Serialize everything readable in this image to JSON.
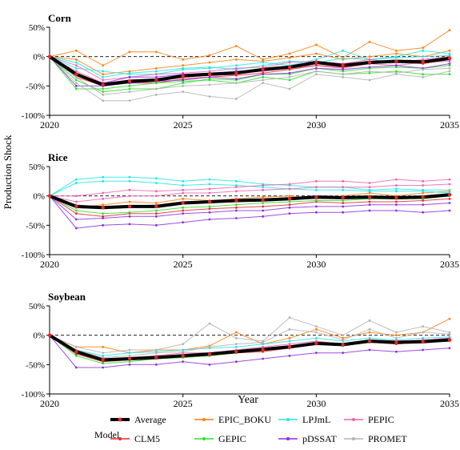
{
  "figure": {
    "xlabel": "Year",
    "ylabel": "Production Shock",
    "legend_title": "Model",
    "legend_placement": "bottom"
  },
  "chart_data": [
    {
      "type": "line",
      "title": "Corn",
      "xlabel": "",
      "ylabel": "Production Shock",
      "xlim": [
        2020,
        2035
      ],
      "ylim": [
        -100,
        50
      ],
      "xticks": [
        "2020",
        "2025",
        "2030",
        "2035"
      ],
      "yticks": [
        "50%",
        "0%",
        "-50%",
        "-100%"
      ],
      "x": [
        2020,
        2021,
        2022,
        2023,
        2024,
        2025,
        2026,
        2027,
        2028,
        2029,
        2030,
        2031,
        2032,
        2033,
        2034,
        2035
      ],
      "reference_line": 0,
      "series": [
        {
          "name": "Average",
          "values": [
            0,
            -30,
            -48,
            -42,
            -40,
            -33,
            -30,
            -28,
            -22,
            -18,
            -10,
            -15,
            -10,
            -8,
            -9,
            -3
          ]
        },
        {
          "name": "EPIC_BOKU",
          "values": [
            0,
            10,
            -15,
            8,
            8,
            -5,
            2,
            18,
            -5,
            5,
            20,
            -2,
            25,
            10,
            15,
            45
          ]
        },
        {
          "name": "EPIC_BOKU",
          "values": [
            0,
            -5,
            -30,
            -25,
            -20,
            -15,
            -10,
            -5,
            -8,
            -2,
            5,
            -5,
            0,
            5,
            0,
            10
          ]
        },
        {
          "name": "LPJmL",
          "values": [
            0,
            -20,
            -25,
            -30,
            -30,
            -22,
            -20,
            -15,
            -10,
            -15,
            -5,
            10,
            -5,
            0,
            10,
            5
          ]
        },
        {
          "name": "LPJmL",
          "values": [
            0,
            -10,
            -35,
            -28,
            -25,
            -20,
            -18,
            -22,
            -15,
            -8,
            -10,
            -3,
            -5,
            -2,
            0,
            2
          ]
        },
        {
          "name": "PEPIC",
          "values": [
            0,
            -15,
            -40,
            -35,
            -30,
            -28,
            -25,
            -20,
            -18,
            -10,
            -8,
            -12,
            -5,
            -10,
            -5,
            0
          ]
        },
        {
          "name": "PEPIC",
          "values": [
            0,
            -25,
            -45,
            -40,
            -38,
            -32,
            -30,
            -28,
            -25,
            -20,
            -15,
            -20,
            -12,
            -15,
            -10,
            -8
          ]
        },
        {
          "name": "CLM5",
          "values": [
            0,
            -35,
            -50,
            -45,
            -45,
            -38,
            -35,
            -32,
            -28,
            -22,
            -15,
            -18,
            -12,
            -10,
            -12,
            -5
          ]
        },
        {
          "name": "GEPIC",
          "values": [
            0,
            -55,
            -55,
            -50,
            -45,
            -42,
            -40,
            -45,
            -35,
            -40,
            -25,
            -30,
            -28,
            -25,
            -30,
            -30
          ]
        },
        {
          "name": "GEPIC",
          "values": [
            0,
            -40,
            -60,
            -55,
            -55,
            -45,
            -38,
            -40,
            -30,
            -30,
            -20,
            -25,
            -20,
            -18,
            -20,
            -15
          ]
        },
        {
          "name": "pDSSAT",
          "values": [
            0,
            -50,
            -50,
            -45,
            -42,
            -40,
            -35,
            -38,
            -30,
            -28,
            -20,
            -22,
            -18,
            -15,
            -20,
            -12
          ]
        },
        {
          "name": "pDSSAT",
          "values": [
            0,
            -30,
            -45,
            -35,
            -35,
            -30,
            -28,
            -25,
            -22,
            -18,
            -12,
            -15,
            -10,
            -8,
            -10,
            -5
          ]
        },
        {
          "name": "PROMET",
          "values": [
            0,
            -45,
            -75,
            -75,
            -65,
            -60,
            -68,
            -72,
            -45,
            -55,
            -30,
            -35,
            -40,
            -30,
            -35,
            -25
          ]
        },
        {
          "name": "PROMET",
          "values": [
            0,
            -35,
            -65,
            -60,
            -55,
            -50,
            -48,
            -45,
            -40,
            -35,
            -25,
            -30,
            -25,
            -28,
            -22,
            -20
          ]
        }
      ]
    },
    {
      "type": "line",
      "title": "Rice",
      "xlabel": "",
      "ylabel": "Production Shock",
      "xlim": [
        2020,
        2035
      ],
      "ylim": [
        -100,
        50
      ],
      "xticks": [
        "2020",
        "2025",
        "2030",
        "2035"
      ],
      "yticks": [
        "50%",
        "0%",
        "-50%",
        "-100%"
      ],
      "x": [
        2020,
        2021,
        2022,
        2023,
        2024,
        2025,
        2026,
        2027,
        2028,
        2029,
        2030,
        2031,
        2032,
        2033,
        2034,
        2035
      ],
      "reference_line": 0,
      "series": [
        {
          "name": "Average",
          "values": [
            0,
            -18,
            -20,
            -18,
            -18,
            -12,
            -10,
            -8,
            -7,
            -5,
            -2,
            -3,
            -2,
            -3,
            -2,
            2
          ]
        },
        {
          "name": "EPIC_BOKU",
          "values": [
            0,
            -20,
            -15,
            -10,
            -12,
            -5,
            -8,
            -5,
            -2,
            0,
            -5,
            0,
            5,
            0,
            5,
            8
          ]
        },
        {
          "name": "LPJmL",
          "values": [
            0,
            28,
            32,
            32,
            30,
            25,
            28,
            25,
            20,
            18,
            15,
            15,
            10,
            12,
            10,
            10
          ]
        },
        {
          "name": "LPJmL",
          "values": [
            0,
            22,
            25,
            25,
            22,
            18,
            20,
            18,
            15,
            12,
            10,
            10,
            8,
            8,
            8,
            5
          ]
        },
        {
          "name": "PEPIC",
          "values": [
            0,
            0,
            5,
            10,
            8,
            10,
            12,
            15,
            18,
            20,
            25,
            25,
            22,
            28,
            25,
            28
          ]
        },
        {
          "name": "PEPIC",
          "values": [
            0,
            -10,
            -5,
            0,
            0,
            5,
            5,
            8,
            10,
            12,
            15,
            15,
            15,
            18,
            18,
            20
          ]
        },
        {
          "name": "CLM5",
          "values": [
            0,
            -30,
            -35,
            -30,
            -30,
            -25,
            -22,
            -20,
            -18,
            -15,
            -10,
            -12,
            -10,
            -10,
            -8,
            -5
          ]
        },
        {
          "name": "GEPIC",
          "values": [
            0,
            -25,
            -30,
            -28,
            -25,
            -20,
            -18,
            -15,
            -12,
            -10,
            -8,
            -8,
            -5,
            -5,
            -5,
            0
          ]
        },
        {
          "name": "pDSSAT",
          "values": [
            0,
            -55,
            -50,
            -48,
            -50,
            -45,
            -40,
            -38,
            -35,
            -30,
            -28,
            -28,
            -25,
            -25,
            -28,
            -25
          ]
        },
        {
          "name": "pDSSAT",
          "values": [
            0,
            -40,
            -38,
            -35,
            -35,
            -30,
            -28,
            -25,
            -25,
            -20,
            -18,
            -18,
            -15,
            -15,
            -15,
            -12
          ]
        },
        {
          "name": "PROMET",
          "values": [
            0,
            -15,
            -20,
            -18,
            -15,
            -10,
            -12,
            -10,
            -8,
            -5,
            -5,
            -5,
            0,
            -2,
            0,
            0
          ]
        }
      ]
    },
    {
      "type": "line",
      "title": "Soybean",
      "xlabel": "Year",
      "ylabel": "Production Shock",
      "xlim": [
        2020,
        2035
      ],
      "ylim": [
        -100,
        50
      ],
      "xticks": [
        "2020",
        "2025",
        "2030",
        "2035"
      ],
      "yticks": [
        "50%",
        "0%",
        "-50%",
        "-100%"
      ],
      "x": [
        2020,
        2021,
        2022,
        2023,
        2024,
        2025,
        2026,
        2027,
        2028,
        2029,
        2030,
        2031,
        2032,
        2033,
        2034,
        2035
      ],
      "reference_line": 0,
      "series": [
        {
          "name": "Average",
          "values": [
            0,
            -28,
            -42,
            -40,
            -38,
            -35,
            -32,
            -28,
            -24,
            -20,
            -14,
            -16,
            -10,
            -12,
            -11,
            -8
          ]
        },
        {
          "name": "EPIC_BOKU",
          "values": [
            0,
            -20,
            -20,
            -30,
            -25,
            -25,
            -18,
            5,
            -15,
            -5,
            10,
            -5,
            5,
            0,
            5,
            28
          ]
        },
        {
          "name": "LPJmL",
          "values": [
            0,
            -25,
            -35,
            -30,
            -28,
            -25,
            -22,
            -20,
            -15,
            -10,
            -5,
            -10,
            -5,
            -8,
            -5,
            -3
          ]
        },
        {
          "name": "PEPIC",
          "values": [
            0,
            -30,
            -40,
            -38,
            -35,
            -30,
            -30,
            -25,
            -20,
            -15,
            -10,
            -15,
            -8,
            -10,
            -8,
            -5
          ]
        },
        {
          "name": "CLM5",
          "values": [
            0,
            -32,
            -45,
            -42,
            -40,
            -38,
            -35,
            -30,
            -28,
            -22,
            -15,
            -18,
            -12,
            -15,
            -12,
            -10
          ]
        },
        {
          "name": "GEPIC",
          "values": [
            0,
            -35,
            -48,
            -45,
            -40,
            -38,
            -35,
            -30,
            -25,
            -20,
            -15,
            -18,
            -12,
            -12,
            -12,
            -10
          ]
        },
        {
          "name": "pDSSAT",
          "values": [
            0,
            -55,
            -55,
            -50,
            -50,
            -45,
            -50,
            -45,
            -40,
            -35,
            -30,
            -30,
            -25,
            -28,
            -25,
            -22
          ]
        },
        {
          "name": "PROMET",
          "values": [
            0,
            -20,
            -30,
            -25,
            -25,
            -15,
            20,
            -5,
            -10,
            30,
            15,
            0,
            25,
            5,
            15,
            5
          ]
        },
        {
          "name": "PROMET",
          "values": [
            0,
            -25,
            -38,
            -35,
            -30,
            -28,
            -20,
            -15,
            -12,
            10,
            5,
            -8,
            10,
            -5,
            5,
            2
          ]
        }
      ]
    }
  ],
  "legend": {
    "title": "Model",
    "entries": [
      {
        "name": "Average",
        "color": "#000000"
      },
      {
        "name": "EPIC_BOKU",
        "color": "#FF7F0E"
      },
      {
        "name": "LPJmL",
        "color": "#22E5E5"
      },
      {
        "name": "PEPIC",
        "color": "#F062B0"
      },
      {
        "name": "CLM5",
        "color": "#E8262A"
      },
      {
        "name": "GEPIC",
        "color": "#2CE02C"
      },
      {
        "name": "pDSSAT",
        "color": "#8F2BE0"
      },
      {
        "name": "PROMET",
        "color": "#B3B3B3"
      }
    ]
  },
  "colors": {
    "Average": "#000000",
    "EPIC_BOKU": "#FF7F0E",
    "LPJmL": "#22E5E5",
    "PEPIC": "#F062B0",
    "CLM5": "#E8262A",
    "GEPIC": "#2CE02C",
    "pDSSAT": "#8F2BE0",
    "PROMET": "#B3B3B3",
    "reference_line": "#000000"
  }
}
